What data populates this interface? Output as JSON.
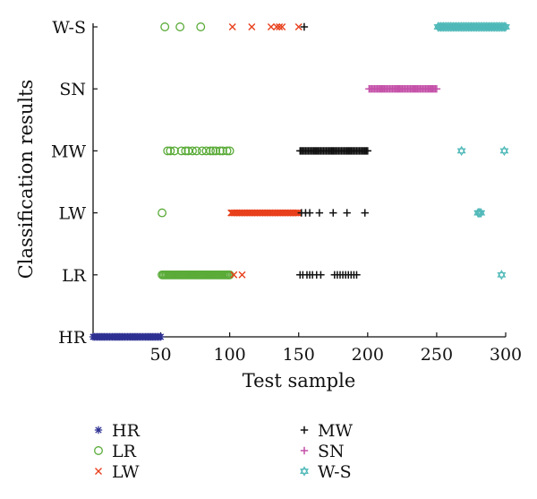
{
  "chart_data": {
    "type": "scatter",
    "xlabel": "Test sample",
    "ylabel": "Classification results",
    "xlim": [
      1,
      300
    ],
    "x_ticks": [
      50,
      100,
      150,
      200,
      250,
      300
    ],
    "categories": [
      "HR",
      "LR",
      "LW",
      "MW",
      "SN",
      "W-S"
    ],
    "grid": false,
    "legend_position": "bottom",
    "series": [
      {
        "name": "HR",
        "marker": "asterisk",
        "color": "#2e3192",
        "points": [
          {
            "x_range": [
              1,
              50
            ],
            "y": "HR"
          }
        ]
      },
      {
        "name": "LR",
        "marker": "circle",
        "color": "#5aab38",
        "points": [
          {
            "x_range": [
              51,
              100
            ],
            "y": "LR"
          },
          {
            "x": [
              51
            ],
            "y": "LW"
          },
          {
            "x": [
              55,
              57,
              60,
              65,
              68,
              70,
              73,
              76,
              80,
              83,
              86,
              88,
              90,
              93,
              95,
              98,
              100
            ],
            "y": "MW"
          },
          {
            "x": [
              53,
              64,
              79
            ],
            "y": "W-S"
          }
        ]
      },
      {
        "name": "LW",
        "marker": "x",
        "color": "#e8401c",
        "points": [
          {
            "x": [
              103,
              109
            ],
            "y": "LR"
          },
          {
            "x_range": [
              101,
              150
            ],
            "y": "LW"
          },
          {
            "x": [
              102,
              116,
              130,
              134,
              136,
              138,
              150
            ],
            "y": "W-S"
          }
        ]
      },
      {
        "name": "MW",
        "marker": "plus",
        "color": "#111111",
        "points": [
          {
            "x": [
              151,
              153,
              156,
              158,
              160,
              163,
              166,
              176,
              178,
              180,
              182,
              184,
              186,
              188,
              190,
              192
            ],
            "y": "LR"
          },
          {
            "x": [
              152,
              155,
              158,
              165,
              175,
              185,
              198
            ],
            "y": "LW"
          },
          {
            "x_range": [
              151,
              200
            ],
            "y": "MW"
          },
          {
            "x": [
              154
            ],
            "y": "W-S"
          }
        ]
      },
      {
        "name": "SN",
        "marker": "plus",
        "color": "#c450a8",
        "points": [
          {
            "x_range": [
              201,
              250
            ],
            "y": "SN"
          }
        ]
      },
      {
        "name": "W-S",
        "marker": "star6",
        "color": "#4fb8b8",
        "points": [
          {
            "x": [
              297
            ],
            "y": "LR"
          },
          {
            "x": [
              280,
              281,
              282
            ],
            "y": "LW"
          },
          {
            "x": [
              268,
              299
            ],
            "y": "MW"
          },
          {
            "x_range": [
              251,
              300
            ],
            "y": "W-S"
          }
        ]
      }
    ]
  }
}
